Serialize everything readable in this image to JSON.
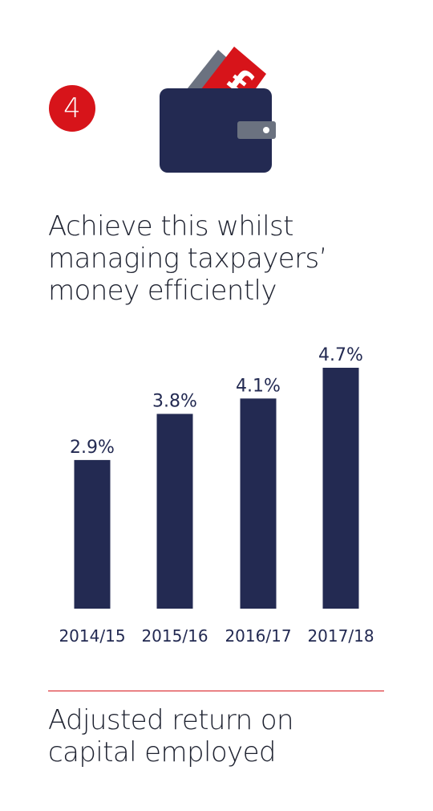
{
  "badge": {
    "number": "4"
  },
  "heading": {
    "lines": [
      "Achieve this whilst",
      "managing taxpayers’",
      "money efficiently"
    ]
  },
  "colors": {
    "accent": "#d7141a",
    "navy": "#232a52",
    "wallet_gray": "#6b7280",
    "text": "#1e2230"
  },
  "icon": {
    "name": "wallet-with-pound-note-icon",
    "note_symbol": "£"
  },
  "chart_data": {
    "type": "bar",
    "categories": [
      "2014/15",
      "2015/16",
      "2016/17",
      "2017/18"
    ],
    "values": [
      2.9,
      3.8,
      4.1,
      4.7
    ],
    "value_labels": [
      "2.9%",
      "3.8%",
      "4.1%",
      "4.7%"
    ],
    "ylim": [
      0,
      4.7
    ],
    "title": "",
    "xlabel": "",
    "ylabel": "",
    "grid": false,
    "legend": "none"
  },
  "caption": {
    "lines": [
      "Adjusted return on",
      "capital employed"
    ]
  }
}
